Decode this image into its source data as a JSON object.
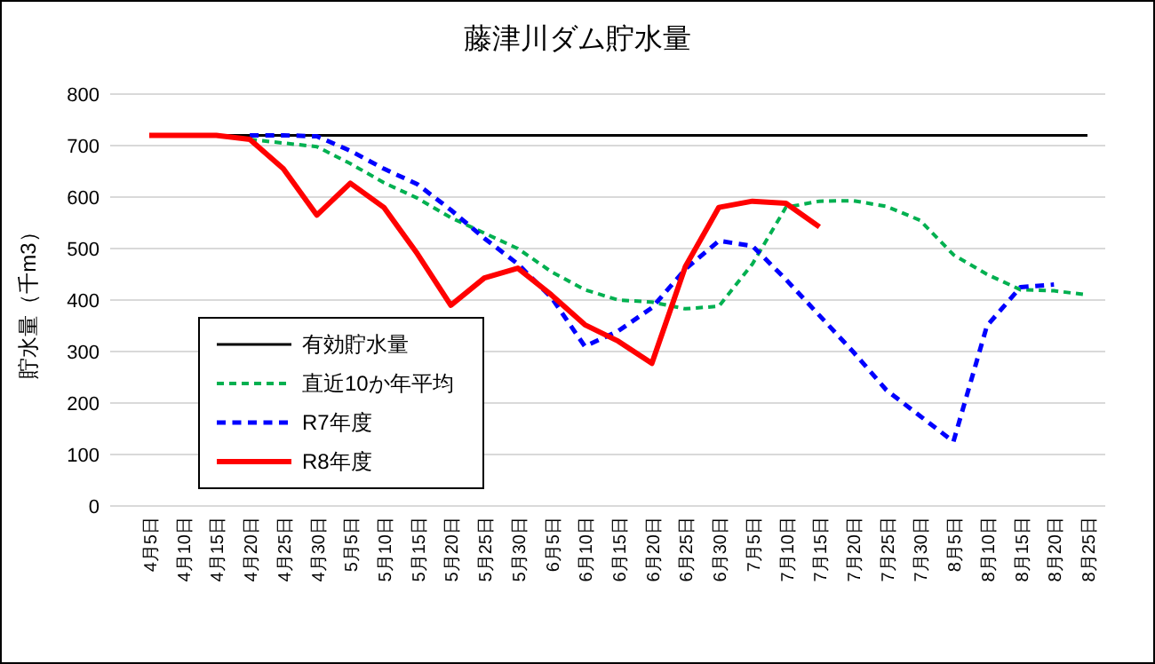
{
  "chart_data": {
    "type": "line",
    "title": "藤津川ダム貯水量",
    "ylabel": "貯水量（千m3）",
    "categories": [
      "4月5日",
      "4月10日",
      "4月15日",
      "4月20日",
      "4月25日",
      "4月30日",
      "5月5日",
      "5月10日",
      "5月15日",
      "5月20日",
      "5月25日",
      "5月30日",
      "6月5日",
      "6月10日",
      "6月15日",
      "6月20日",
      "6月25日",
      "6月30日",
      "7月5日",
      "7月10日",
      "7月15日",
      "7月20日",
      "7月25日",
      "7月30日",
      "8月5日",
      "8月10日",
      "8月15日",
      "8月20日",
      "8月25日"
    ],
    "ylim": [
      0,
      800
    ],
    "yticks": [
      0,
      100,
      200,
      300,
      400,
      500,
      600,
      700,
      800
    ],
    "grid": "y",
    "legend": "bottom left",
    "marker": "none",
    "series": [
      {
        "name": "有効貯水量",
        "color": "#000000",
        "line_style": "solid",
        "values": [
          720,
          720,
          720,
          720,
          720,
          720,
          720,
          720,
          720,
          720,
          720,
          720,
          720,
          720,
          720,
          720,
          720,
          720,
          720,
          720,
          720,
          720,
          720,
          720,
          720,
          720,
          720,
          720,
          720
        ]
      },
      {
        "name": "直近10か年平均",
        "color": "#00b050",
        "line_style": "dashed",
        "values": [
          null,
          null,
          null,
          712,
          705,
          698,
          665,
          628,
          598,
          560,
          530,
          500,
          455,
          420,
          400,
          396,
          383,
          388,
          470,
          580,
          592,
          593,
          582,
          555,
          488,
          450,
          420,
          418,
          410
        ]
      },
      {
        "name": "R7年度",
        "color": "#0000ff",
        "line_style": "dashed",
        "values": [
          null,
          null,
          null,
          720,
          720,
          718,
          690,
          655,
          625,
          575,
          520,
          470,
          405,
          310,
          340,
          385,
          460,
          515,
          505,
          440,
          370,
          300,
          225,
          175,
          125,
          350,
          425,
          430,
          null
        ]
      },
      {
        "name": "R8年度",
        "color": "#ff0000",
        "line_style": "solid",
        "values": [
          720,
          720,
          720,
          712,
          655,
          565,
          627,
          580,
          490,
          390,
          443,
          462,
          410,
          352,
          320,
          277,
          465,
          580,
          592,
          588,
          542,
          null,
          null,
          null,
          null,
          null,
          null,
          null,
          null
        ]
      }
    ]
  }
}
